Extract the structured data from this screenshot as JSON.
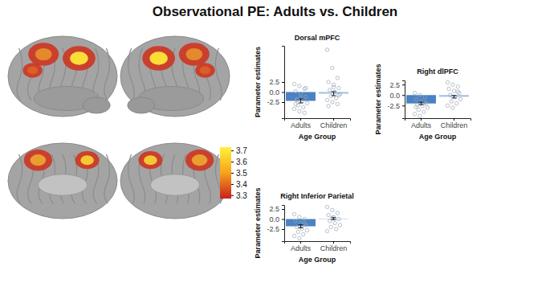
{
  "title": "Observational PE: Adults vs. Children",
  "chart_data": [
    {
      "type": "brain_map",
      "colorbar": {
        "range": [
          3.27,
          3.73
        ],
        "ticks": [
          3.3,
          3.4,
          3.5,
          3.6,
          3.7
        ]
      }
    },
    {
      "type": "bar",
      "title": "Dorsal mPFC",
      "x_label": "Age Group",
      "y_label": "Parameter estimates",
      "categories": [
        "Adults",
        "Children"
      ],
      "values": [
        -2.2,
        -0.4
      ],
      "errors": [
        0.5,
        0.5
      ],
      "colors": [
        "#4a82c3",
        "#9dc1e6"
      ],
      "points": [
        [
          2.0,
          1.5,
          0.8,
          0.2,
          -0.5,
          -1.2,
          -1.8,
          -2.3,
          -2.8,
          -3.3,
          -3.8,
          -4.2,
          -4.8,
          -5.2,
          -3.0,
          -1.5,
          1.0,
          -2.0
        ],
        [
          10.5,
          6.0,
          3.5,
          2.5,
          1.8,
          1.0,
          0.5,
          0.0,
          -0.5,
          -1.0,
          -1.5,
          -2.0,
          -2.5,
          -3.0,
          -3.5,
          1.2,
          -0.8
        ]
      ],
      "ylim": [
        -6.5,
        11.5
      ],
      "yticks": [
        -2.5,
        {
          "value": 0,
          "label": "0.0"
        },
        2.5
      ]
    },
    {
      "type": "bar",
      "title": "Right dlPFC",
      "x_label": "Age Group",
      "y_label": "Parameter estimates",
      "categories": [
        "Adults",
        "Children"
      ],
      "values": [
        -2.0,
        -0.4
      ],
      "errors": [
        0.3,
        0.3
      ],
      "colors": [
        "#4a82c3",
        "#9dc1e6"
      ],
      "points": [
        [
          0.5,
          0.0,
          -0.5,
          -1.0,
          -1.5,
          -2.0,
          -2.3,
          -2.6,
          -3.0,
          -3.5,
          -4.0,
          -4.5,
          -5.0,
          -1.8,
          -2.8
        ],
        [
          3.0,
          2.5,
          2.0,
          1.5,
          1.0,
          0.5,
          0.0,
          -0.5,
          -1.0,
          -1.5,
          -2.0,
          -2.5,
          -3.0,
          0.8
        ]
      ],
      "ylim": [
        -5.5,
        3.5
      ],
      "yticks": [
        -2.5,
        {
          "value": 0,
          "label": "0.0"
        },
        2.5
      ]
    },
    {
      "type": "bar",
      "title": "Right Inferior Parietal",
      "x_label": "Age Group",
      "y_label": "Parameter estimates",
      "categories": [
        "Adults",
        "Children"
      ],
      "values": [
        -1.8,
        0.1
      ],
      "errors": [
        0.4,
        0.25
      ],
      "colors": [
        "#4a82c3",
        "#9dc1e6"
      ],
      "points": [
        [
          1.2,
          0.5,
          0.0,
          -0.5,
          -1.0,
          -1.5,
          -2.0,
          -2.4,
          -2.8,
          -3.2,
          -3.8,
          -4.2,
          -4.8,
          -1.2
        ],
        [
          3.0,
          2.2,
          1.5,
          1.0,
          0.5,
          0.0,
          -0.5,
          -1.0,
          -1.5,
          -2.0,
          -2.5,
          -3.0,
          0.3
        ]
      ],
      "ylim": [
        -5.5,
        3.5
      ],
      "yticks": [
        -2.5,
        {
          "value": 0,
          "label": "0.0"
        },
        2.5
      ]
    }
  ]
}
